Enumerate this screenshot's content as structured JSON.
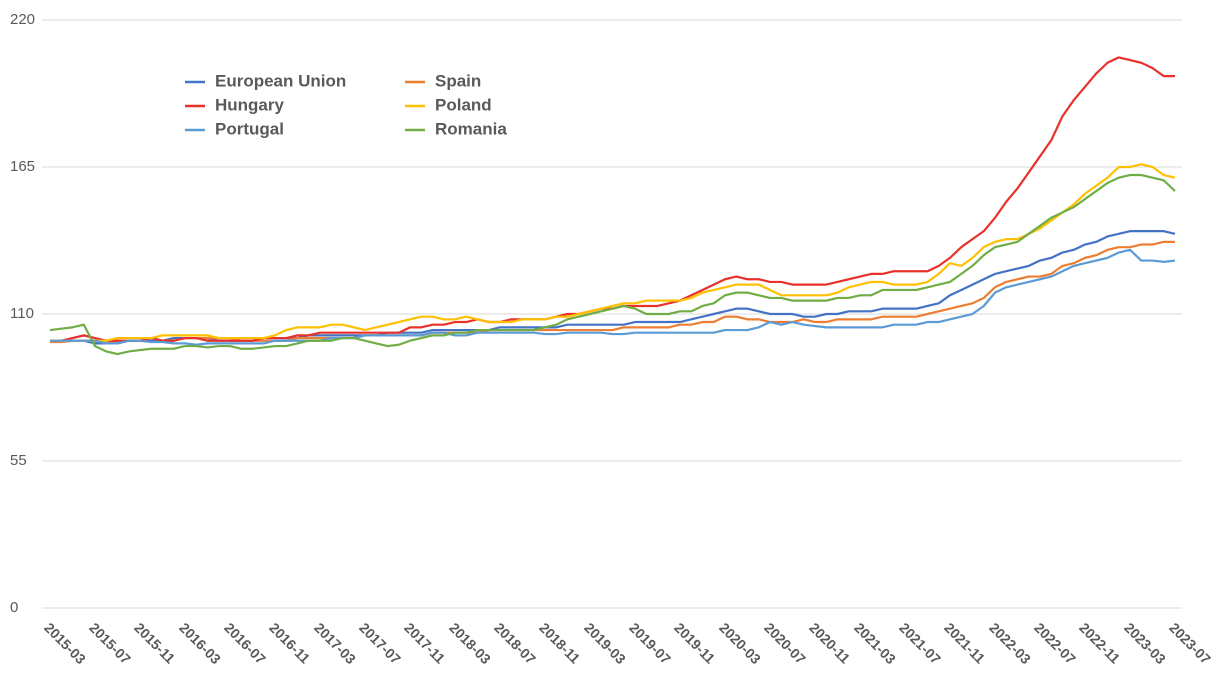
{
  "chart_data": {
    "type": "line",
    "categories": [
      "2015-03",
      null,
      null,
      null,
      "2015-07",
      null,
      null,
      null,
      "2015-11",
      null,
      null,
      null,
      "2016-03",
      null,
      null,
      null,
      "2016-07",
      null,
      null,
      null,
      "2016-11",
      null,
      null,
      null,
      "2017-03",
      null,
      null,
      null,
      "2017-07",
      null,
      null,
      null,
      "2017-11",
      null,
      null,
      null,
      "2018-03",
      null,
      null,
      null,
      "2018-07",
      null,
      null,
      null,
      "2018-11",
      null,
      null,
      null,
      "2019-03",
      null,
      null,
      null,
      "2019-07",
      null,
      null,
      null,
      "2019-11",
      null,
      null,
      null,
      "2020-03",
      null,
      null,
      null,
      "2020-07",
      null,
      null,
      null,
      "2020-11",
      null,
      null,
      null,
      "2021-03",
      null,
      null,
      null,
      "2021-07",
      null,
      null,
      null,
      "2021-11",
      null,
      null,
      null,
      "2022-03",
      null,
      null,
      null,
      "2022-07",
      null,
      null,
      null,
      "2022-11",
      null,
      null,
      null,
      "2023-03",
      null,
      null,
      null,
      "2023-07"
    ],
    "series": [
      {
        "name": "European Union",
        "color": "#4472c4",
        "values": [
          100,
          100,
          100,
          100,
          99,
          99,
          99,
          100,
          100,
          100,
          100,
          101,
          101,
          101,
          101,
          100,
          100,
          100,
          100,
          101,
          101,
          101,
          101,
          102,
          102,
          102,
          102,
          102,
          102,
          102,
          103,
          103,
          103,
          103,
          104,
          104,
          104,
          104,
          104,
          104,
          105,
          105,
          105,
          105,
          105,
          105,
          106,
          106,
          106,
          106,
          106,
          106,
          107,
          107,
          107,
          107,
          107,
          108,
          109,
          110,
          111,
          112,
          112,
          111,
          110,
          110,
          110,
          109,
          109,
          110,
          110,
          111,
          111,
          111,
          112,
          112,
          112,
          112,
          113,
          114,
          117,
          119,
          121,
          123,
          125,
          126,
          127,
          128,
          130,
          131,
          133,
          134,
          136,
          137,
          139,
          140,
          141,
          141,
          141,
          141,
          140
        ]
      },
      {
        "name": "Spain",
        "color": "#ed7d31",
        "values": [
          99.5,
          99.5,
          100,
          100,
          100,
          99,
          100,
          100,
          100,
          101,
          100,
          100,
          101,
          101,
          101,
          101,
          101,
          100,
          100,
          100,
          100,
          100,
          101,
          101,
          101,
          101,
          101,
          101,
          102,
          102,
          102,
          102,
          102,
          102,
          103,
          103,
          103,
          103,
          103,
          104,
          104,
          104,
          104,
          104,
          104,
          104,
          104,
          104,
          104,
          104,
          104,
          105,
          105,
          105,
          105,
          105,
          106,
          106,
          107,
          107,
          109,
          109,
          108,
          108,
          107,
          107,
          107,
          108,
          107,
          107,
          108,
          108,
          108,
          108,
          109,
          109,
          109,
          109,
          110,
          111,
          112,
          113,
          114,
          116,
          120,
          122,
          123,
          124,
          124,
          125,
          128,
          129,
          131,
          132,
          134,
          135,
          135,
          136,
          136,
          137,
          137
        ]
      },
      {
        "name": "Hungary",
        "color": "#e8312a",
        "values": [
          100,
          100,
          101,
          102,
          101,
          100,
          100,
          100,
          100,
          101,
          100,
          100,
          101,
          101,
          100,
          100,
          100,
          100,
          100,
          101,
          101,
          101,
          102,
          102,
          103,
          103,
          103,
          103,
          103,
          103,
          103,
          103,
          105,
          105,
          106,
          106,
          107,
          107,
          108,
          107,
          107,
          108,
          108,
          108,
          108,
          109,
          110,
          110,
          111,
          112,
          112,
          113,
          113,
          113,
          113,
          114,
          115,
          117,
          119,
          121,
          123,
          124,
          123,
          123,
          122,
          122,
          121,
          121,
          121,
          121,
          122,
          123,
          124,
          125,
          125,
          126,
          126,
          126,
          126,
          128,
          131,
          135,
          138,
          141,
          146,
          152,
          157,
          163,
          169,
          175,
          184,
          190,
          195,
          200,
          204,
          206,
          205,
          204,
          202,
          199,
          199
        ]
      },
      {
        "name": "Poland",
        "color": "#ffc000",
        "values": [
          100,
          100,
          100,
          100,
          100,
          100,
          101,
          101,
          101,
          101,
          102,
          102,
          102,
          102,
          102,
          101,
          101,
          101,
          101,
          101,
          102,
          104,
          105,
          105,
          105,
          106,
          106,
          105,
          104,
          105,
          106,
          107,
          108,
          109,
          109,
          108,
          108,
          109,
          108,
          107,
          107,
          107,
          108,
          108,
          108,
          109,
          109,
          110,
          111,
          112,
          113,
          114,
          114,
          115,
          115,
          115,
          115,
          116,
          118,
          119,
          120,
          121,
          121,
          121,
          119,
          117,
          117,
          117,
          117,
          117,
          118,
          120,
          121,
          122,
          122,
          121,
          121,
          121,
          122,
          125,
          129,
          128,
          131,
          135,
          137,
          138,
          138,
          140,
          142,
          145,
          148,
          151,
          155,
          158,
          161,
          165,
          165,
          166,
          165,
          162,
          161
        ]
      },
      {
        "name": "Portugal",
        "color": "#5b9bd5",
        "values": [
          100,
          100,
          100,
          100,
          100,
          99,
          99,
          100,
          100,
          99.5,
          99.5,
          99,
          99,
          98.5,
          99,
          99,
          99,
          99,
          99,
          99,
          100,
          100,
          100,
          100,
          100,
          101,
          101,
          101,
          102,
          102,
          102,
          102,
          102,
          102,
          103,
          103,
          102,
          102,
          103,
          103,
          103,
          103,
          103,
          103,
          102.5,
          102.5,
          103,
          103,
          103,
          103,
          102.5,
          102.5,
          103,
          103,
          103,
          103,
          103,
          103,
          103,
          103,
          104,
          104,
          104,
          105,
          107,
          106,
          107,
          106,
          105.5,
          105,
          105,
          105,
          105,
          105,
          105,
          106,
          106,
          106,
          107,
          107,
          108,
          109,
          110,
          113,
          118,
          120,
          121,
          122,
          123,
          124,
          126,
          128,
          129,
          130,
          131,
          133,
          134,
          130,
          130,
          129.5,
          130
        ]
      },
      {
        "name": "Romania",
        "color": "#70ad47",
        "values": [
          104,
          104.5,
          105,
          106,
          98,
          96,
          95,
          96,
          96.5,
          97,
          97,
          97,
          98,
          98,
          97.5,
          98,
          98,
          97,
          97,
          97.5,
          98,
          98,
          99,
          100,
          100,
          100,
          101,
          101,
          100,
          99,
          98,
          98.5,
          100,
          101,
          102,
          102,
          103,
          103,
          104,
          104,
          104,
          104,
          104,
          104,
          105,
          106,
          108,
          109,
          110,
          111,
          112,
          113,
          112,
          110,
          110,
          110,
          111,
          111,
          113,
          114,
          117,
          118,
          118,
          117,
          116,
          116,
          115,
          115,
          115,
          115,
          116,
          116,
          117,
          117,
          119,
          119,
          119,
          119,
          120,
          121,
          122,
          125,
          128,
          132,
          135,
          136,
          137,
          140,
          143,
          146,
          148,
          150,
          153,
          156,
          159,
          161,
          162,
          162,
          161,
          160,
          156
        ]
      }
    ],
    "ylim": [
      0,
      220
    ],
    "yticks": [
      0,
      55,
      110,
      165,
      220
    ],
    "grid": true
  }
}
